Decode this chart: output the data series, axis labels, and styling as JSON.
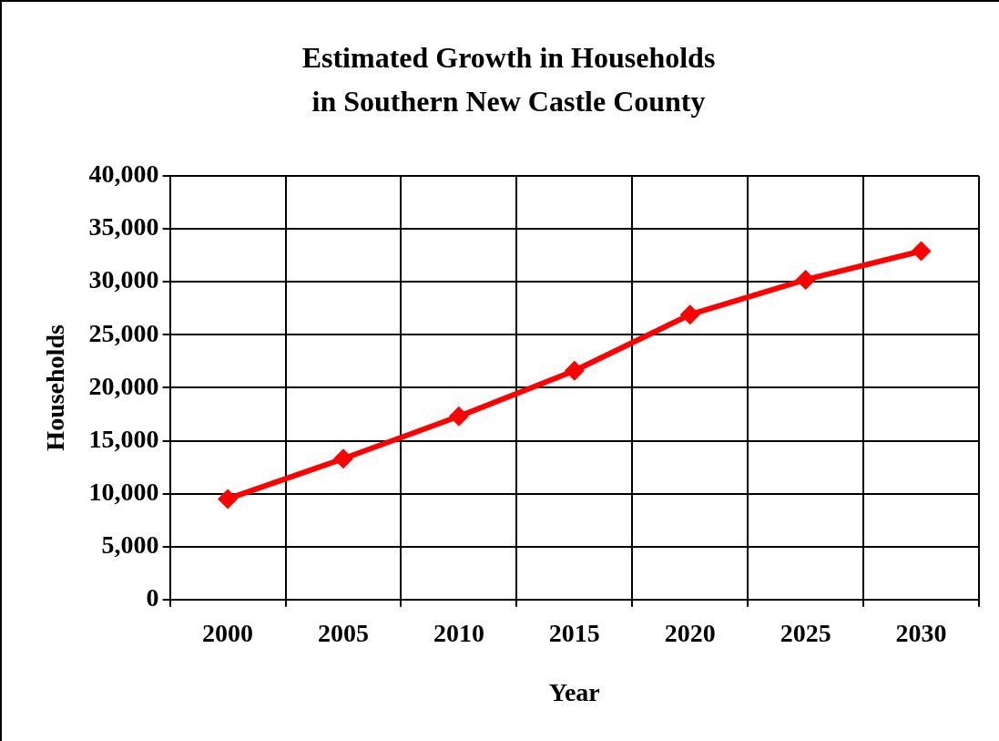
{
  "chart_data": {
    "type": "line",
    "title": "Estimated Growth in Households\nin Southern New Castle County",
    "xlabel": "Year",
    "ylabel": "Households",
    "categories": [
      "2000",
      "2005",
      "2010",
      "2015",
      "2020",
      "2025",
      "2030"
    ],
    "series": [
      {
        "color": "#ff0000",
        "values": [
          9500,
          13300,
          17300,
          21600,
          26900,
          30200,
          32900
        ]
      }
    ],
    "ylim": [
      0,
      40000
    ],
    "yticks": [
      0,
      {
        "value": 5000,
        "label": "5,000"
      },
      {
        "value": 10000,
        "label": "10,000"
      },
      {
        "value": 15000,
        "label": "15,000"
      },
      {
        "value": 20000,
        "label": "20,000"
      },
      {
        "value": 25000,
        "label": "25,000"
      },
      {
        "value": 30000,
        "label": "30,000"
      },
      {
        "value": 35000,
        "label": "35,000"
      },
      {
        "value": 40000,
        "label": "40,000"
      }
    ],
    "grid": true,
    "legend": false,
    "marker": "diamond",
    "line_style": "solid"
  }
}
